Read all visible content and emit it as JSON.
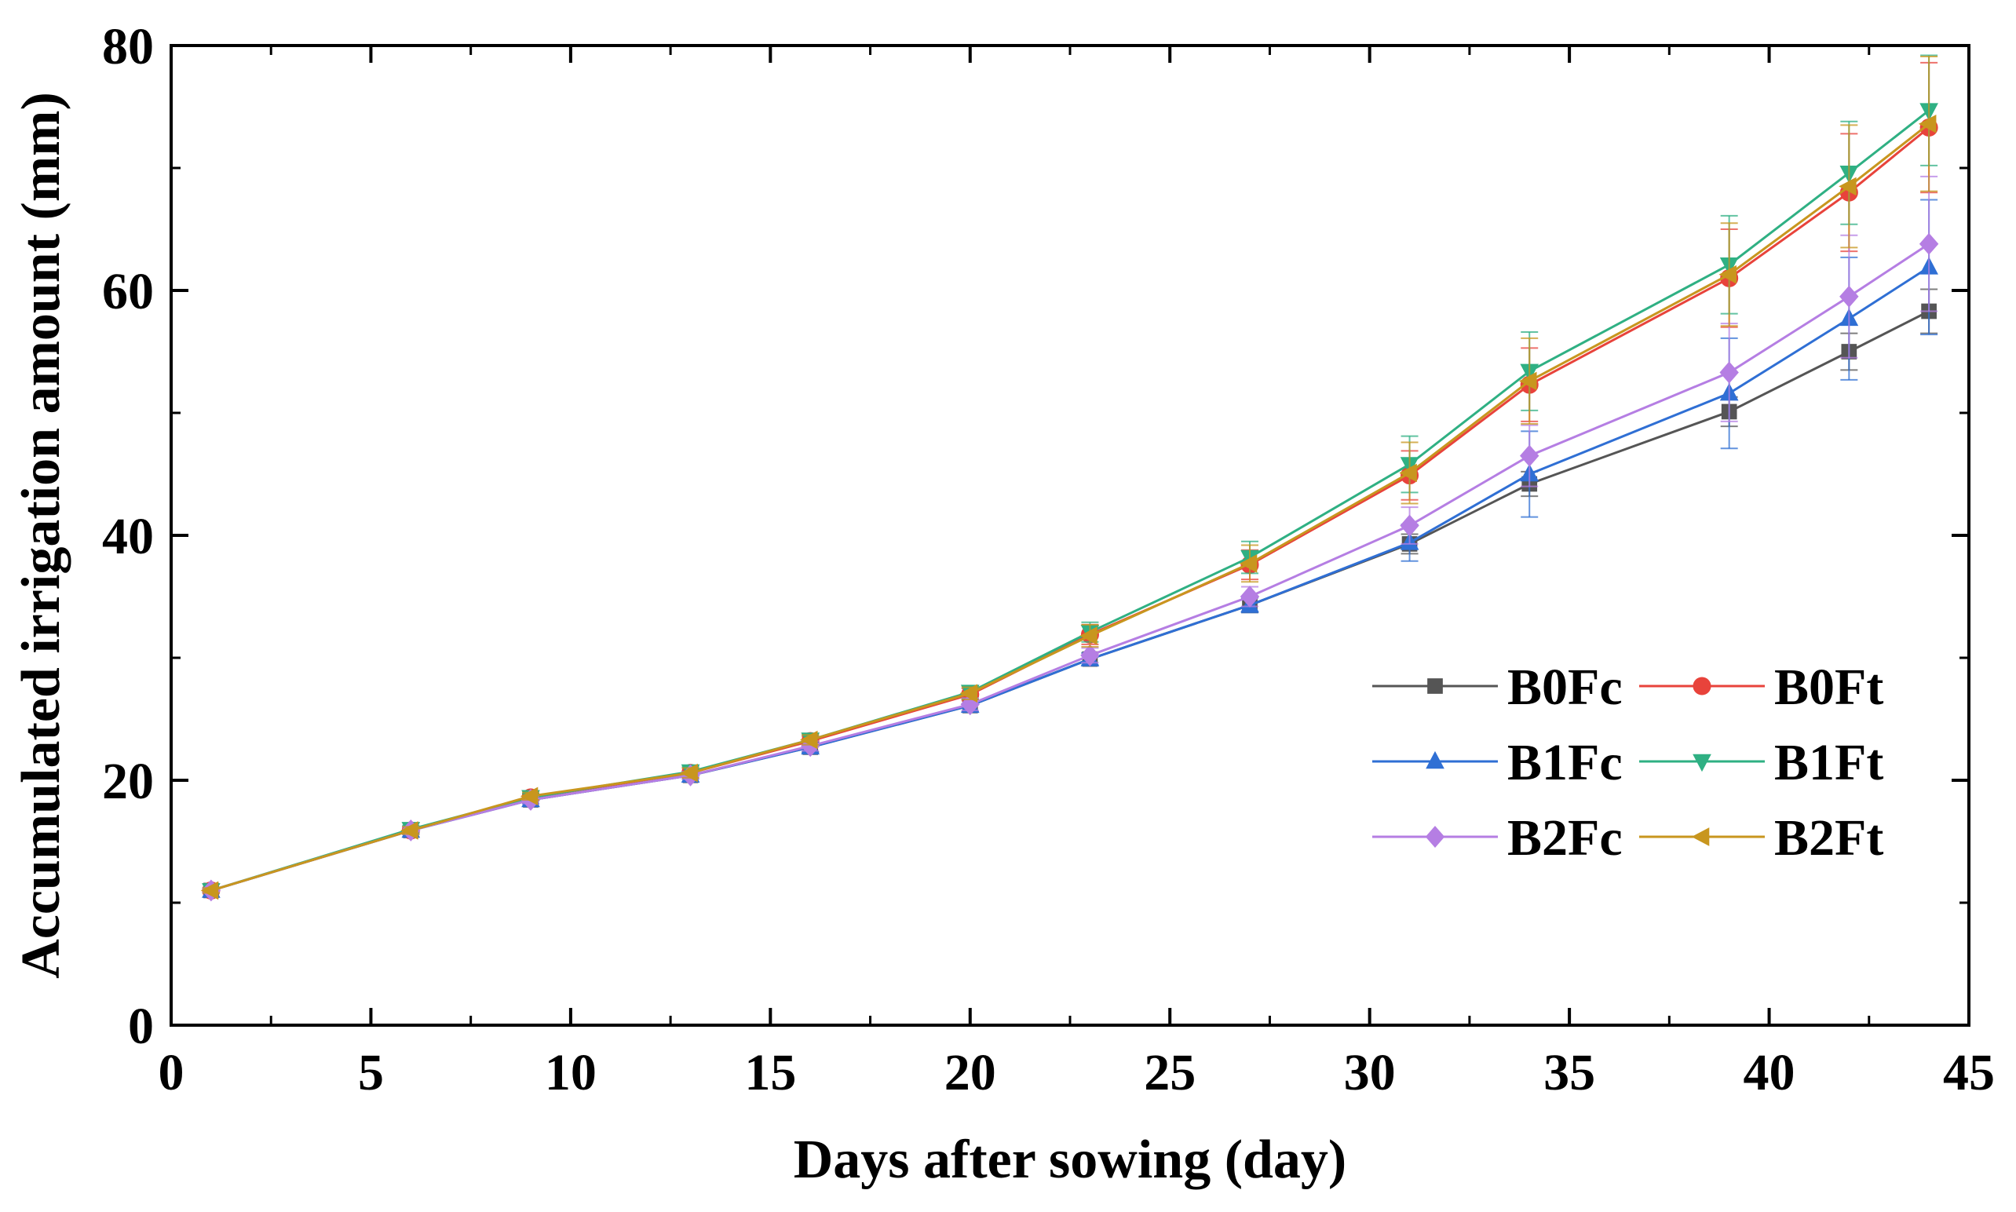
{
  "chart_data": {
    "type": "line",
    "title": "",
    "xlabel": "Days after sowing (day)",
    "ylabel": "Accumulated irrigation amount (mm)",
    "xlim": [
      0,
      45
    ],
    "ylim": [
      0,
      80
    ],
    "x_ticks": [
      0,
      5,
      10,
      15,
      20,
      25,
      30,
      35,
      40,
      45
    ],
    "y_ticks": [
      0,
      20,
      40,
      60,
      80
    ],
    "x_tick_labels": [
      "0",
      "5",
      "10",
      "15",
      "20",
      "25",
      "30",
      "35",
      "40",
      "45"
    ],
    "y_tick_labels": [
      "0",
      "20",
      "40",
      "60",
      "80"
    ],
    "x": [
      1,
      6,
      9,
      13,
      16,
      20,
      23,
      27,
      31,
      34,
      39,
      42,
      44
    ],
    "legend_position": "bottom-right",
    "series": [
      {
        "name": "B0Fc",
        "color": "#555555",
        "marker": "square",
        "values": [
          11.0,
          15.9,
          18.4,
          20.4,
          22.7,
          26.1,
          29.9,
          34.3,
          39.3,
          44.2,
          50.1,
          55.0,
          58.3
        ],
        "errors": [
          0.2,
          0.3,
          0.3,
          0.3,
          0.4,
          0.5,
          0.5,
          0.6,
          0.8,
          1.0,
          1.2,
          1.5,
          1.8
        ]
      },
      {
        "name": "B0Ft",
        "color": "#e8433b",
        "marker": "circle",
        "values": [
          11.0,
          15.9,
          18.6,
          20.6,
          23.2,
          27.0,
          31.9,
          37.6,
          44.9,
          52.3,
          61.0,
          68.0,
          73.3
        ],
        "errors": [
          0.2,
          0.3,
          0.3,
          0.4,
          0.4,
          0.5,
          0.8,
          1.2,
          2.0,
          3.0,
          4.0,
          4.8,
          5.3
        ]
      },
      {
        "name": "B1Fc",
        "color": "#2f6fd4",
        "marker": "triangle-up",
        "values": [
          11.0,
          15.9,
          18.4,
          20.4,
          22.7,
          26.1,
          29.9,
          34.3,
          39.4,
          45.0,
          51.6,
          57.7,
          61.9
        ],
        "errors": [
          0.2,
          0.3,
          0.3,
          0.3,
          0.4,
          0.5,
          0.5,
          0.6,
          1.5,
          3.5,
          4.5,
          5.0,
          5.5
        ]
      },
      {
        "name": "B1Ft",
        "color": "#2fb083",
        "marker": "triangle-down",
        "values": [
          11.0,
          16.0,
          18.6,
          20.7,
          23.3,
          27.2,
          32.1,
          38.2,
          45.8,
          53.4,
          62.1,
          69.6,
          74.7
        ],
        "errors": [
          0.2,
          0.3,
          0.3,
          0.4,
          0.4,
          0.5,
          0.8,
          1.3,
          2.3,
          3.2,
          4.0,
          4.2,
          4.5
        ]
      },
      {
        "name": "B2Fc",
        "color": "#b57ee3",
        "marker": "diamond",
        "values": [
          11.0,
          15.9,
          18.4,
          20.4,
          22.8,
          26.2,
          30.2,
          35.0,
          40.8,
          46.5,
          53.3,
          59.5,
          63.8
        ],
        "errors": [
          0.2,
          0.3,
          0.3,
          0.3,
          0.4,
          0.5,
          0.6,
          0.8,
          1.5,
          2.5,
          4.0,
          5.0,
          5.5
        ]
      },
      {
        "name": "B2Ft",
        "color": "#c8961e",
        "marker": "triangle-left",
        "values": [
          11.0,
          15.9,
          18.7,
          20.6,
          23.3,
          27.1,
          31.8,
          37.7,
          45.1,
          52.6,
          61.3,
          68.5,
          73.6
        ],
        "errors": [
          0.2,
          0.3,
          0.3,
          0.4,
          0.4,
          0.5,
          0.9,
          1.5,
          2.5,
          3.5,
          4.2,
          5.0,
          5.5
        ]
      }
    ]
  }
}
